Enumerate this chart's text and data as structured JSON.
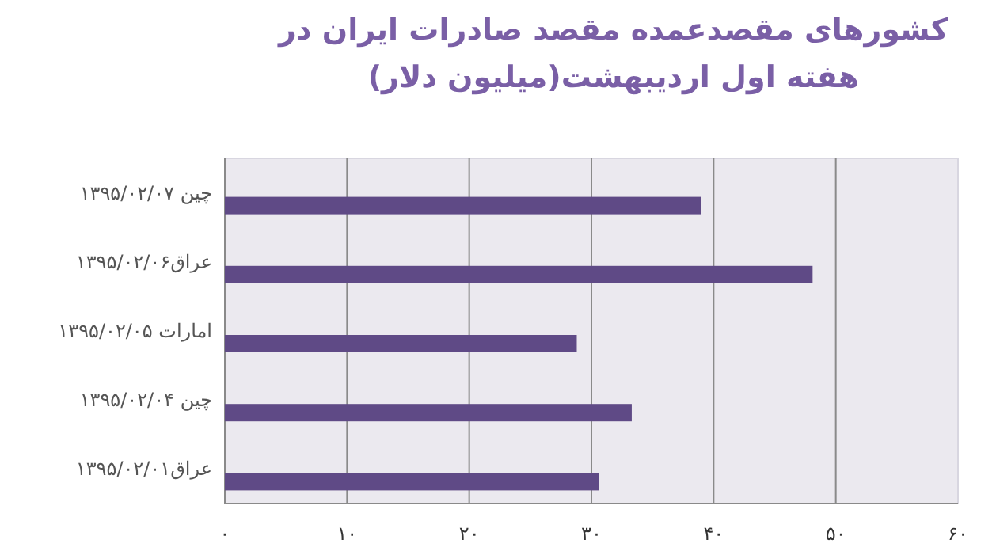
{
  "chart_data": {
    "type": "bar",
    "orientation": "horizontal",
    "title": "کشورهای مقصدعمده مقصد صادرات ایران در هفته اول اردیبهشت(میلیون دلار)",
    "categories": [
      "چین ۱۳۹۵/۰۲/۰۷",
      "عراق۱۳۹۵/۰۲/۰۶",
      "امارات ۱۳۹۵/۰۲/۰۵",
      "چین ۱۳۹۵/۰۲/۰۴",
      "عراق۱۳۹۵/۰۲/۰۱"
    ],
    "values": [
      39.0,
      48.1,
      28.8,
      33.3,
      30.6
    ],
    "color": "#5f4a86",
    "xlim": [
      0,
      60
    ],
    "xticks": [
      {
        "value": 0,
        "label": "۰"
      },
      {
        "value": 10,
        "label": "۱۰"
      },
      {
        "value": 20,
        "label": "۲۰"
      },
      {
        "value": 30,
        "label": "۳۰"
      },
      {
        "value": 40,
        "label": "۴۰"
      },
      {
        "value": 50,
        "label": "۵۰"
      },
      {
        "value": 60,
        "label": "۶۰"
      }
    ],
    "grid": "x"
  }
}
